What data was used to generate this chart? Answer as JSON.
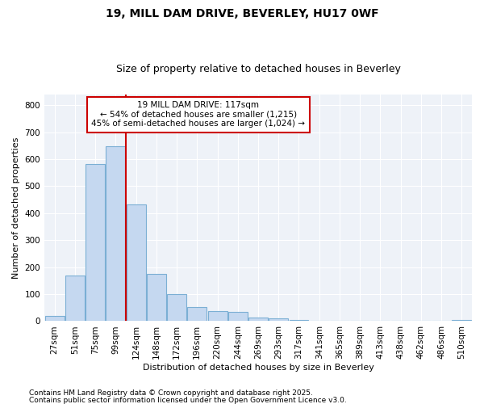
{
  "title1": "19, MILL DAM DRIVE, BEVERLEY, HU17 0WF",
  "title2": "Size of property relative to detached houses in Beverley",
  "xlabel": "Distribution of detached houses by size in Beverley",
  "ylabel": "Number of detached properties",
  "bar_color": "#c5d8f0",
  "bar_edge_color": "#7bafd4",
  "background_color": "#eef2f8",
  "grid_color": "#ffffff",
  "bins": [
    "27sqm",
    "51sqm",
    "75sqm",
    "99sqm",
    "124sqm",
    "148sqm",
    "172sqm",
    "196sqm",
    "220sqm",
    "244sqm",
    "269sqm",
    "293sqm",
    "317sqm",
    "341sqm",
    "365sqm",
    "389sqm",
    "413sqm",
    "438sqm",
    "462sqm",
    "486sqm",
    "510sqm"
  ],
  "values": [
    20,
    168,
    583,
    648,
    432,
    175,
    100,
    52,
    38,
    33,
    12,
    9,
    4,
    2,
    1,
    1,
    0,
    0,
    0,
    0,
    5
  ],
  "ylim": [
    0,
    840
  ],
  "yticks": [
    0,
    100,
    200,
    300,
    400,
    500,
    600,
    700,
    800
  ],
  "vline_x": 4,
  "annotation_title": "19 MILL DAM DRIVE: 117sqm",
  "annotation_line1": "← 54% of detached houses are smaller (1,215)",
  "annotation_line2": "45% of semi-detached houses are larger (1,024) →",
  "footnote1": "Contains HM Land Registry data © Crown copyright and database right 2025.",
  "footnote2": "Contains public sector information licensed under the Open Government Licence v3.0.",
  "vline_color": "#cc0000",
  "annotation_box_edge": "#cc0000",
  "title_fontsize": 10,
  "subtitle_fontsize": 9,
  "axis_label_fontsize": 8,
  "tick_fontsize": 7.5,
  "annotation_fontsize": 7.5,
  "footnote_fontsize": 6.5
}
